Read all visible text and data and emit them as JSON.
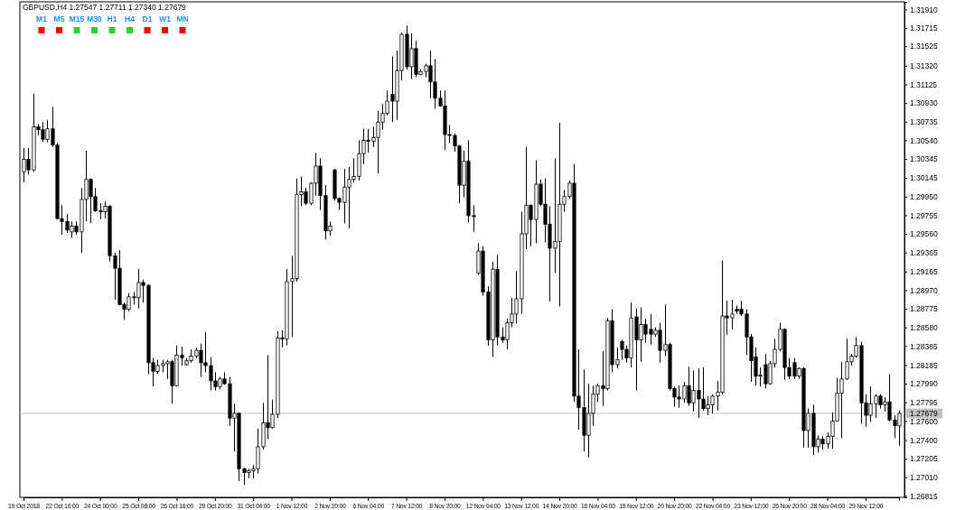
{
  "chart_data": [
    {
      "type": "candlestick",
      "title": "GBPUSD,H4  1.27547 1.27711 1.27340 1.27679",
      "categories": [
        "19 Oct 2018",
        null,
        null,
        null,
        null,
        null,
        null,
        null,
        "22 Oct 16:00",
        null,
        null,
        null,
        null,
        null,
        null,
        null,
        "24 Oct 00:00",
        null,
        null,
        null,
        null,
        null,
        null,
        null,
        "25 Oct 08:00",
        null,
        null,
        null,
        null,
        null,
        null,
        null,
        "26 Oct 16:00",
        null,
        null,
        null,
        null,
        null,
        null,
        null,
        "29 Oct 20:00",
        null,
        null,
        null,
        null,
        null,
        null,
        null,
        "31 Oct 04:00",
        null,
        null,
        null,
        null,
        null,
        null,
        null,
        "1 Nov 12:00",
        null,
        null,
        null,
        null,
        null,
        null,
        null,
        "2 Nov 20:00",
        null,
        null,
        null,
        null,
        null,
        null,
        null,
        "6 Nov 04:00",
        null,
        null,
        null,
        null,
        null,
        null,
        null,
        "7 Nov 12:00",
        null,
        null,
        null,
        null,
        null,
        null,
        null,
        "8 Nov 20:00",
        null,
        null,
        null,
        null,
        null,
        null,
        null,
        "12 Nov 04:00",
        null,
        null,
        null,
        null,
        null,
        null,
        null,
        "13 Nov 12:00",
        null,
        null,
        null,
        null,
        null,
        null,
        null,
        "14 Nov 20:00",
        null,
        null,
        null,
        null,
        null,
        null,
        null,
        "16 Nov 04:00",
        null,
        null,
        null,
        null,
        null,
        null,
        null,
        "19 Nov 12:00",
        null,
        null,
        null,
        null,
        null,
        null,
        null,
        "20 Nov 20:00",
        null,
        null,
        null,
        null,
        null,
        null,
        null,
        "22 Nov 04:00",
        null,
        null,
        null,
        null,
        null,
        null,
        null,
        "23 Nov 12:00",
        null,
        null,
        null,
        null,
        null,
        null,
        null,
        "26 Nov 20:00",
        null,
        null,
        null,
        null,
        null,
        null,
        null,
        "28 Nov 04:00",
        null,
        null,
        null,
        null,
        null,
        null,
        null,
        "29 Nov 12:00",
        null,
        null,
        null,
        null,
        null,
        null,
        null
      ],
      "ohlc": [
        [
          1.3021,
          1.3046,
          1.301,
          1.3034
        ],
        [
          1.3034,
          1.3046,
          1.3018,
          1.3023
        ],
        [
          1.3023,
          1.3103,
          1.3021,
          1.3068
        ],
        [
          1.3068,
          1.3071,
          1.3059,
          1.3065
        ],
        [
          1.3065,
          1.3073,
          1.3052,
          1.3055
        ],
        [
          1.3055,
          1.3075,
          1.3052,
          1.3066
        ],
        [
          1.3066,
          1.3089,
          1.3047,
          1.3049
        ],
        [
          1.3049,
          1.3051,
          1.2971,
          1.2972
        ],
        [
          1.2972,
          1.2986,
          1.2955,
          1.2969
        ],
        [
          1.2969,
          1.2977,
          1.2957,
          1.296
        ],
        [
          1.2958,
          1.2969,
          1.2952,
          1.2964
        ],
        [
          1.2964,
          1.2969,
          1.2955,
          1.2958
        ],
        [
          1.2958,
          1.3004,
          1.2936,
          1.2992
        ],
        [
          1.2992,
          1.3043,
          1.2969,
          1.3013
        ],
        [
          1.3013,
          1.3014,
          1.2967,
          1.2995
        ],
        [
          1.2995,
          1.3004,
          1.2979,
          1.298
        ],
        [
          1.298,
          1.2988,
          1.2971,
          1.2979
        ],
        [
          1.2979,
          1.299,
          1.2972,
          1.2985
        ],
        [
          1.2985,
          1.2986,
          1.2927,
          1.2933
        ],
        [
          1.2933,
          1.2936,
          1.2887,
          1.292
        ],
        [
          1.292,
          1.2939,
          1.2881,
          1.2882
        ],
        [
          1.2882,
          1.2884,
          1.2866,
          1.2877
        ],
        [
          1.2877,
          1.2894,
          1.2875,
          1.289
        ],
        [
          1.289,
          1.2895,
          1.2882,
          1.2889
        ],
        [
          1.2889,
          1.2919,
          1.2878,
          1.2905
        ],
        [
          1.2905,
          1.2908,
          1.2884,
          1.2902
        ],
        [
          1.2902,
          1.2903,
          1.2809,
          1.2821
        ],
        [
          1.2821,
          1.2826,
          1.2796,
          1.2812
        ],
        [
          1.2812,
          1.2824,
          1.2809,
          1.2818
        ],
        [
          1.2818,
          1.2824,
          1.2811,
          1.282
        ],
        [
          1.282,
          1.2824,
          1.2804,
          1.2822
        ],
        [
          1.2822,
          1.2824,
          1.2778,
          1.2797
        ],
        [
          1.2797,
          1.2839,
          1.2796,
          1.2829
        ],
        [
          1.2829,
          1.2838,
          1.2818,
          1.2826
        ],
        [
          1.2819,
          1.2826,
          1.2818,
          1.2823
        ],
        [
          1.2823,
          1.2835,
          1.2821,
          1.2828
        ],
        [
          1.2828,
          1.2837,
          1.2826,
          1.2834
        ],
        [
          1.2834,
          1.2841,
          1.2806,
          1.2821
        ],
        [
          1.2821,
          1.2853,
          1.2811,
          1.2818
        ],
        [
          1.2818,
          1.2827,
          1.2792,
          1.2802
        ],
        [
          1.2802,
          1.2811,
          1.2792,
          1.2796
        ],
        [
          1.2796,
          1.2806,
          1.2793,
          1.2804
        ],
        [
          1.2804,
          1.2811,
          1.2798,
          1.2799
        ],
        [
          1.2799,
          1.2806,
          1.2755,
          1.2763
        ],
        [
          1.2763,
          1.2778,
          1.2728,
          1.2768
        ],
        [
          1.2768,
          1.2769,
          1.2697,
          1.271
        ],
        [
          1.271,
          1.2711,
          1.2693,
          1.2706
        ],
        [
          1.2706,
          1.271,
          1.27,
          1.2708
        ],
        [
          1.2708,
          1.2714,
          1.27,
          1.271
        ],
        [
          1.271,
          1.2752,
          1.2705,
          1.2733
        ],
        [
          1.2733,
          1.2779,
          1.273,
          1.2758
        ],
        [
          1.2758,
          1.2829,
          1.2741,
          1.2753
        ],
        [
          1.2753,
          1.2782,
          1.2752,
          1.2767
        ],
        [
          1.2767,
          1.2854,
          1.2763,
          1.2847
        ],
        [
          1.2847,
          1.2855,
          1.2837,
          1.2846
        ],
        [
          1.2846,
          1.2919,
          1.2839,
          1.2906
        ],
        [
          1.2906,
          1.2933,
          1.2848,
          1.2909
        ],
        [
          1.2909,
          1.3014,
          1.2906,
          1.2997
        ],
        [
          1.2997,
          1.3016,
          1.2985,
          1.3
        ],
        [
          1.3,
          1.3004,
          1.2986,
          1.2988
        ],
        [
          1.2988,
          1.301,
          1.2986,
          1.3009
        ],
        [
          1.3009,
          1.3041,
          1.2996,
          1.3027
        ],
        [
          1.3027,
          1.3035,
          1.2981,
          1.2996
        ],
        [
          1.2996,
          1.3007,
          1.295,
          1.2959
        ],
        [
          1.2959,
          1.2969,
          1.2954,
          1.2964
        ],
        [
          1.3023,
          1.3024,
          1.2991,
          1.2993
        ],
        [
          1.2993,
          1.2994,
          1.2981,
          1.2989
        ],
        [
          1.2989,
          1.3024,
          1.2967,
          1.3005
        ],
        [
          1.3005,
          1.3026,
          1.2962,
          1.3013
        ],
        [
          1.3013,
          1.3035,
          1.301,
          1.3016
        ],
        [
          1.3016,
          1.3054,
          1.3012,
          1.304
        ],
        [
          1.304,
          1.3066,
          1.3029,
          1.3054
        ],
        [
          1.3054,
          1.3066,
          1.3041,
          1.3053
        ],
        [
          1.3053,
          1.3068,
          1.3047,
          1.3057
        ],
        [
          1.3057,
          1.3085,
          1.3019,
          1.3073
        ],
        [
          1.3073,
          1.3092,
          1.3065,
          1.3082
        ],
        [
          1.3082,
          1.3106,
          1.308,
          1.3095
        ],
        [
          1.3102,
          1.3142,
          1.3073,
          1.3095
        ],
        [
          1.3095,
          1.3148,
          1.3075,
          1.3127
        ],
        [
          1.3127,
          1.3167,
          1.3117,
          1.3165
        ],
        [
          1.3165,
          1.3174,
          1.3128,
          1.3131
        ],
        [
          1.3131,
          1.3166,
          1.3118,
          1.315
        ],
        [
          1.315,
          1.3158,
          1.312,
          1.3123
        ],
        [
          1.3123,
          1.3128,
          1.3122,
          1.3126
        ],
        [
          1.3126,
          1.3134,
          1.312,
          1.3132
        ],
        [
          1.3132,
          1.3148,
          1.3098,
          1.3115
        ],
        [
          1.3115,
          1.3139,
          1.3087,
          1.3098
        ],
        [
          1.3098,
          1.3106,
          1.3089,
          1.309
        ],
        [
          1.309,
          1.3106,
          1.3044,
          1.306
        ],
        [
          1.306,
          1.307,
          1.3051,
          1.3059
        ],
        [
          1.3059,
          1.3061,
          1.3042,
          1.3048
        ],
        [
          1.3048,
          1.3049,
          1.2988,
          1.3007
        ],
        [
          1.3007,
          1.3043,
          1.2994,
          1.3032
        ],
        [
          1.3032,
          1.3054,
          1.2968,
          1.2975
        ],
        [
          1.2975,
          1.2986,
          1.2958,
          1.2974
        ],
        [
          1.2915,
          1.2946,
          1.2913,
          1.2938
        ],
        [
          1.2938,
          1.2943,
          1.2891,
          1.2895
        ],
        [
          1.2895,
          1.2901,
          1.2839,
          1.2845
        ],
        [
          1.2845,
          1.2927,
          1.2827,
          1.2919
        ],
        [
          1.2919,
          1.2934,
          1.2839,
          1.2848
        ],
        [
          1.2848,
          1.2858,
          1.2842,
          1.2845
        ],
        [
          1.2845,
          1.2867,
          1.2835,
          1.2863
        ],
        [
          1.2863,
          1.2889,
          1.2858,
          1.2872
        ],
        [
          1.2872,
          1.2917,
          1.2862,
          1.2888
        ],
        [
          1.2888,
          1.2979,
          1.2872,
          1.2956
        ],
        [
          1.2956,
          1.3047,
          1.294,
          1.2986
        ],
        [
          1.2986,
          1.2987,
          1.2943,
          1.2971
        ],
        [
          1.2971,
          1.3033,
          1.2946,
          1.3008
        ],
        [
          1.3008,
          1.3013,
          1.2985,
          1.2987
        ],
        [
          1.2987,
          1.3014,
          1.2947,
          1.2966
        ],
        [
          1.2966,
          1.2985,
          1.2885,
          1.2941
        ],
        [
          1.2941,
          1.3035,
          1.2915,
          1.2948
        ],
        [
          1.2948,
          1.3072,
          1.288,
          1.2987
        ],
        [
          1.2987,
          1.3002,
          1.2979,
          1.2995
        ],
        [
          1.2995,
          1.3012,
          1.2993,
          1.3009
        ],
        [
          1.3009,
          1.3029,
          1.278,
          1.2786
        ],
        [
          1.2786,
          1.2835,
          1.2751,
          1.2774
        ],
        [
          1.2774,
          1.2814,
          1.2728,
          1.2745
        ],
        [
          1.2745,
          1.2799,
          1.2722,
          1.2768
        ],
        [
          1.2768,
          1.2797,
          1.2755,
          1.2788
        ],
        [
          1.2788,
          1.2799,
          1.278,
          1.2797
        ],
        [
          1.2797,
          1.2833,
          1.2776,
          1.2794
        ],
        [
          1.2794,
          1.2868,
          1.2792,
          1.2865
        ],
        [
          1.2865,
          1.2877,
          1.2811,
          1.2819
        ],
        [
          1.2819,
          1.2837,
          1.2815,
          1.2824
        ],
        [
          1.2843,
          1.2845,
          1.2824,
          1.2835
        ],
        [
          1.2835,
          1.2839,
          1.2821,
          1.2826
        ],
        [
          1.2826,
          1.2884,
          1.2816,
          1.2868
        ],
        [
          1.2869,
          1.2878,
          1.2792,
          1.2845
        ],
        [
          1.2845,
          1.2879,
          1.2822,
          1.2861
        ],
        [
          1.2861,
          1.2867,
          1.2842,
          1.2851
        ],
        [
          1.2856,
          1.2872,
          1.284,
          1.2851
        ],
        [
          1.2851,
          1.2858,
          1.2848,
          1.2855
        ],
        [
          1.2855,
          1.2863,
          1.2821,
          1.2834
        ],
        [
          1.2834,
          1.2882,
          1.2828,
          1.284
        ],
        [
          1.284,
          1.2842,
          1.2792,
          1.2794
        ],
        [
          1.2794,
          1.2796,
          1.2775,
          1.2785
        ],
        [
          1.2785,
          1.2797,
          1.2774,
          1.2783
        ],
        [
          1.2783,
          1.2801,
          1.2779,
          1.2797
        ],
        [
          1.2797,
          1.2817,
          1.2776,
          1.2779
        ],
        [
          1.2779,
          1.2813,
          1.277,
          1.2792
        ],
        [
          1.2792,
          1.2815,
          1.2763,
          1.2783
        ],
        [
          1.2783,
          1.2816,
          1.2771,
          1.2773
        ],
        [
          1.2773,
          1.2786,
          1.2766,
          1.2777
        ],
        [
          1.2777,
          1.2788,
          1.2768,
          1.2786
        ],
        [
          1.2786,
          1.2802,
          1.2771,
          1.279
        ],
        [
          1.279,
          1.2928,
          1.2788,
          1.287
        ],
        [
          1.287,
          1.2886,
          1.285,
          1.2868
        ],
        [
          1.2868,
          1.2887,
          1.2856,
          1.2872
        ],
        [
          1.2877,
          1.2881,
          1.2872,
          1.2875
        ],
        [
          1.2877,
          1.2886,
          1.287,
          1.2872
        ],
        [
          1.2872,
          1.2877,
          1.2829,
          1.2848
        ],
        [
          1.2848,
          1.2851,
          1.2801,
          1.2823
        ],
        [
          1.2827,
          1.2837,
          1.2797,
          1.2807
        ],
        [
          1.2808,
          1.2816,
          1.2796,
          1.2807
        ],
        [
          1.2819,
          1.283,
          1.2794,
          1.2799
        ],
        [
          1.2799,
          1.2823,
          1.2798,
          1.282
        ],
        [
          1.282,
          1.2846,
          1.2816,
          1.2835
        ],
        [
          1.2835,
          1.2863,
          1.2833,
          1.2856
        ],
        [
          1.2856,
          1.2857,
          1.2803,
          1.2816
        ],
        [
          1.2816,
          1.2826,
          1.2804,
          1.2807
        ],
        [
          1.2821,
          1.2826,
          1.2804,
          1.2807
        ],
        [
          1.2807,
          1.2816,
          1.2804,
          1.2815
        ],
        [
          1.2815,
          1.2816,
          1.2732,
          1.275
        ],
        [
          1.275,
          1.2773,
          1.2732,
          1.2768
        ],
        [
          1.2768,
          1.2777,
          1.2724,
          1.2733
        ],
        [
          1.2733,
          1.2745,
          1.2727,
          1.2741
        ],
        [
          1.2741,
          1.2744,
          1.273,
          1.2736
        ],
        [
          1.2736,
          1.2748,
          1.2731,
          1.2744
        ],
        [
          1.2744,
          1.2769,
          1.2731,
          1.276
        ],
        [
          1.276,
          1.2805,
          1.276,
          1.2789
        ],
        [
          1.2789,
          1.2822,
          1.2742,
          1.2804
        ],
        [
          1.2804,
          1.2846,
          1.2803,
          1.2822
        ],
        [
          1.2822,
          1.283,
          1.2818,
          1.2828
        ],
        [
          1.2828,
          1.2848,
          1.2826,
          1.2839
        ],
        [
          1.2839,
          1.2843,
          1.2757,
          1.2779
        ],
        [
          1.2779,
          1.2788,
          1.2754,
          1.2766
        ],
        [
          1.2766,
          1.2796,
          1.2759,
          1.2778
        ],
        [
          1.2778,
          1.2788,
          1.2763,
          1.2786
        ],
        [
          1.2786,
          1.2788,
          1.2773,
          1.2777
        ],
        [
          1.2777,
          1.2785,
          1.277,
          1.278
        ],
        [
          1.278,
          1.2809,
          1.276,
          1.2761
        ],
        [
          1.2761,
          1.2766,
          1.2742,
          1.2755
        ],
        [
          1.27547,
          1.27711,
          1.2734,
          1.27679
        ]
      ],
      "ylim": [
        1.268,
        1.3199
      ],
      "yticks": [
        {
          "value": 1.3191,
          "label": "1.31910"
        },
        {
          "value": 1.31715,
          "label": "1.31715"
        },
        {
          "value": 1.31525,
          "label": "1.31525"
        },
        {
          "value": 1.3132,
          "label": "1.31320"
        },
        {
          "value": 1.31125,
          "label": "1.31125"
        },
        {
          "value": 1.3093,
          "label": "1.30930"
        },
        {
          "value": 1.30735,
          "label": "1.30735"
        },
        {
          "value": 1.3054,
          "label": "1.30540"
        },
        {
          "value": 1.30345,
          "label": "1.30345"
        },
        {
          "value": 1.30145,
          "label": "1.30145"
        },
        {
          "value": 1.2995,
          "label": "1.29950"
        },
        {
          "value": 1.29755,
          "label": "1.29755"
        },
        {
          "value": 1.2956,
          "label": "1.29560"
        },
        {
          "value": 1.29365,
          "label": "1.29365"
        },
        {
          "value": 1.29165,
          "label": "1.29165"
        },
        {
          "value": 1.2897,
          "label": "1.28970"
        },
        {
          "value": 1.28775,
          "label": "1.28775"
        },
        {
          "value": 1.2858,
          "label": "1.28580"
        },
        {
          "value": 1.28385,
          "label": "1.28385"
        },
        {
          "value": 1.28185,
          "label": "1.28185"
        },
        {
          "value": 1.2799,
          "label": "1.27990"
        },
        {
          "value": 1.27795,
          "label": "1.27795"
        },
        {
          "value": 1.276,
          "label": "1.27600"
        },
        {
          "value": 1.274,
          "label": "1.27400"
        },
        {
          "value": 1.27205,
          "label": "1.27205"
        },
        {
          "value": 1.2701,
          "label": "1.27010"
        },
        {
          "value": 1.26815,
          "label": "1.26815"
        }
      ],
      "ref_lines": [
        {
          "axis": "y",
          "value": 1.27679,
          "label": "1.27679",
          "color": "#c0c0c0"
        }
      ]
    },
    {
      "type": "other",
      "categories": [
        "M1",
        "M5",
        "M15",
        "M30",
        "H1",
        "H4",
        "D1",
        "W1",
        "MN"
      ],
      "colors": [
        "#ff0000",
        "#ff0000",
        "#32cd32",
        "#32cd32",
        "#32cd32",
        "#32cd32",
        "#ff0000",
        "#ff0000",
        "#ff0000"
      ]
    }
  ]
}
